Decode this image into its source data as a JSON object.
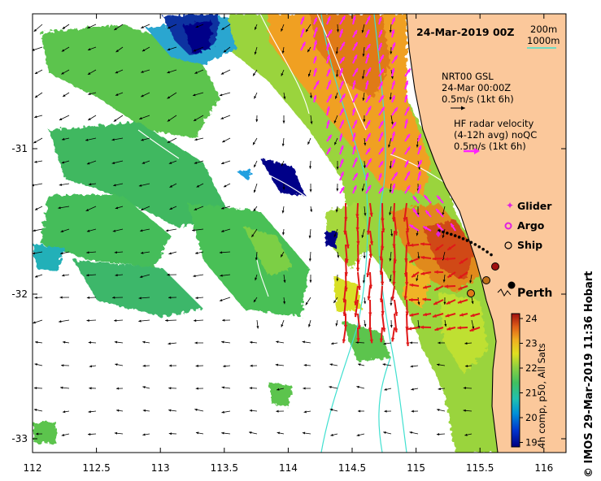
{
  "map": {
    "timestamp": "24-Mar-2019 00Z",
    "credit": "© IMOS 29-Mar-2019 11:36 Hobart",
    "colorbar_title": "4h comp, p50, All Sats",
    "x_ticks": [
      "112",
      "112.5",
      "113",
      "113.5",
      "114",
      "114.5",
      "115",
      "115.5",
      "116"
    ],
    "y_ticks": [
      "-31",
      "-32",
      "-33"
    ],
    "contours": {
      "label_a": "200m",
      "label_b": "1000m",
      "color": "#40e0d0"
    },
    "model_vectors": {
      "line1": "NRT00 GSL",
      "line2": "24-Mar 00:00Z",
      "line3": "0.5m/s (1kt 6h)"
    },
    "radar_vectors": {
      "line1": "HF radar velocity",
      "line2": "(4-12h avg) noQC",
      "line3": "0.5m/s (1kt 6h)"
    },
    "legend": {
      "glider": "Glider",
      "argo": "Argo",
      "ship": "Ship"
    },
    "city": "Perth",
    "colorbar": {
      "ticks": [
        "24",
        "23",
        "22",
        "21",
        "20",
        "19"
      ],
      "colors": [
        "#000080",
        "#0033cc",
        "#0090d8",
        "#20c0b0",
        "#40c060",
        "#90d040",
        "#e0e020",
        "#f0b020",
        "#e06018",
        "#a01010"
      ]
    },
    "colors": {
      "land": "#fbc89b",
      "coast": "#000000",
      "model_arrow": "#000000",
      "radar_arrow": "#ff22ff",
      "radar_arrow_strong": "#e01818",
      "glider": "#e020e0"
    }
  }
}
